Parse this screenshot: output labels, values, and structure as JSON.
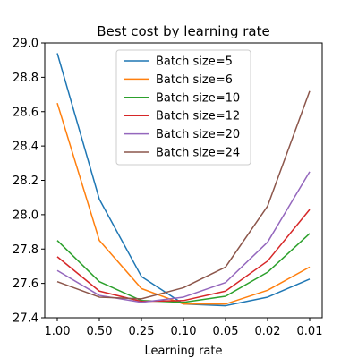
{
  "chart_data": {
    "type": "line",
    "title": "Best cost by learning rate",
    "xlabel": "Learning rate",
    "ylabel": "",
    "categories": [
      "1.00",
      "0.50",
      "0.25",
      "0.10",
      "0.05",
      "0.02",
      "0.01"
    ],
    "ylim": [
      27.4,
      29.0
    ],
    "yticks": [
      27.4,
      27.6,
      27.8,
      28.0,
      28.2,
      28.4,
      28.6,
      28.8,
      29.0
    ],
    "ytick_labels": [
      "27.4",
      "27.6",
      "27.8",
      "28.0",
      "28.2",
      "28.4",
      "28.6",
      "28.8",
      "29.0"
    ],
    "legend_position": "top-center",
    "grid": false,
    "series": [
      {
        "name": "Batch size=5",
        "color": "#1f77b4",
        "values": [
          28.94,
          28.09,
          27.64,
          27.48,
          27.47,
          27.52,
          27.625
        ]
      },
      {
        "name": "Batch size=6",
        "color": "#ff7f0e",
        "values": [
          28.65,
          27.85,
          27.57,
          27.48,
          27.48,
          27.56,
          27.695
        ]
      },
      {
        "name": "Batch size=10",
        "color": "#2ca02c",
        "values": [
          27.85,
          27.61,
          27.5,
          27.49,
          27.525,
          27.665,
          27.89
        ]
      },
      {
        "name": "Batch size=12",
        "color": "#d62728",
        "values": [
          27.755,
          27.555,
          27.495,
          27.5,
          27.555,
          27.73,
          28.03
        ]
      },
      {
        "name": "Batch size=20",
        "color": "#9467bd",
        "values": [
          27.675,
          27.53,
          27.49,
          27.52,
          27.605,
          27.84,
          28.25
        ]
      },
      {
        "name": "Batch size=24",
        "color": "#8c564b",
        "values": [
          27.61,
          27.52,
          27.51,
          27.575,
          27.695,
          28.05,
          28.72
        ]
      }
    ]
  }
}
